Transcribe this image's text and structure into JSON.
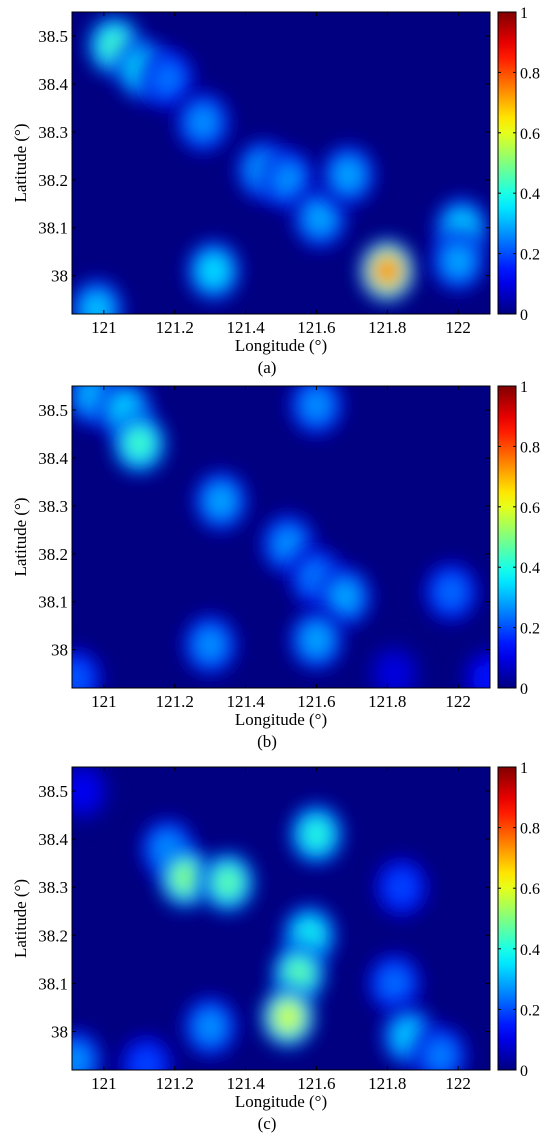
{
  "chart_data": [
    {
      "type": "heatmap",
      "caption": "(a)",
      "xlabel": "Longitude (°)",
      "ylabel": "Latitude (°)",
      "xlim": [
        120.91,
        122.09
      ],
      "ylim": [
        37.92,
        38.55
      ],
      "x_ticks": [
        121,
        121.2,
        121.4,
        121.6,
        121.8,
        122
      ],
      "x_tick_labels": [
        "121",
        "121.2",
        "121.4",
        "121.6",
        "121.8",
        "122"
      ],
      "y_ticks": [
        38,
        38.1,
        38.2,
        38.3,
        38.4,
        38.5
      ],
      "y_tick_labels": [
        "38",
        "38.1",
        "38.2",
        "38.3",
        "38.4",
        "38.5"
      ],
      "colorbar": {
        "range": [
          0,
          1
        ],
        "ticks": [
          0,
          0.2,
          0.4,
          0.6,
          0.8,
          1
        ],
        "tick_labels": [
          "0",
          "0.2",
          "0.4",
          "0.6",
          "0.8",
          "1"
        ],
        "colormap": "jet"
      },
      "blobs": [
        {
          "x": 121.03,
          "y": 38.48,
          "value": 0.45
        },
        {
          "x": 121.11,
          "y": 38.43,
          "value": 0.38
        },
        {
          "x": 121.18,
          "y": 38.41,
          "value": 0.25
        },
        {
          "x": 121.28,
          "y": 38.32,
          "value": 0.28
        },
        {
          "x": 121.45,
          "y": 38.22,
          "value": 0.3
        },
        {
          "x": 121.52,
          "y": 38.2,
          "value": 0.28
        },
        {
          "x": 121.61,
          "y": 38.12,
          "value": 0.3
        },
        {
          "x": 121.69,
          "y": 38.21,
          "value": 0.3
        },
        {
          "x": 121.8,
          "y": 38.01,
          "value": 0.78
        },
        {
          "x": 121.31,
          "y": 38.01,
          "value": 0.36
        },
        {
          "x": 122.01,
          "y": 38.1,
          "value": 0.35
        },
        {
          "x": 122.0,
          "y": 38.03,
          "value": 0.3
        },
        {
          "x": 120.98,
          "y": 37.93,
          "value": 0.33
        }
      ]
    },
    {
      "type": "heatmap",
      "caption": "(b)",
      "xlabel": "Longitude (°)",
      "ylabel": "Latitude (°)",
      "xlim": [
        120.91,
        122.09
      ],
      "ylim": [
        37.92,
        38.55
      ],
      "x_ticks": [
        121,
        121.2,
        121.4,
        121.6,
        121.8,
        122
      ],
      "x_tick_labels": [
        "121",
        "121.2",
        "121.4",
        "121.6",
        "121.8",
        "122"
      ],
      "y_ticks": [
        38,
        38.1,
        38.2,
        38.3,
        38.4,
        38.5
      ],
      "y_tick_labels": [
        "38",
        "38.1",
        "38.2",
        "38.3",
        "38.4",
        "38.5"
      ],
      "colorbar": {
        "range": [
          0,
          1
        ],
        "ticks": [
          0,
          0.2,
          0.4,
          0.6,
          0.8,
          1
        ],
        "tick_labels": [
          "0",
          "0.2",
          "0.4",
          "0.6",
          "0.8",
          "1"
        ],
        "colormap": "jet"
      },
      "blobs": [
        {
          "x": 120.97,
          "y": 38.53,
          "value": 0.32
        },
        {
          "x": 121.06,
          "y": 38.5,
          "value": 0.35
        },
        {
          "x": 121.1,
          "y": 38.43,
          "value": 0.45
        },
        {
          "x": 121.33,
          "y": 38.31,
          "value": 0.3
        },
        {
          "x": 121.52,
          "y": 38.22,
          "value": 0.28
        },
        {
          "x": 121.6,
          "y": 38.15,
          "value": 0.26
        },
        {
          "x": 121.68,
          "y": 38.11,
          "value": 0.3
        },
        {
          "x": 121.6,
          "y": 38.02,
          "value": 0.3
        },
        {
          "x": 121.6,
          "y": 38.51,
          "value": 0.28
        },
        {
          "x": 121.3,
          "y": 38.01,
          "value": 0.28
        },
        {
          "x": 121.98,
          "y": 38.12,
          "value": 0.24
        },
        {
          "x": 121.82,
          "y": 37.95,
          "value": 0.1
        },
        {
          "x": 120.92,
          "y": 37.94,
          "value": 0.22
        },
        {
          "x": 122.09,
          "y": 37.94,
          "value": 0.15
        }
      ]
    },
    {
      "type": "heatmap",
      "caption": "(c)",
      "xlabel": "Longitude (°)",
      "ylabel": "Latitude (°)",
      "xlim": [
        120.91,
        122.09
      ],
      "ylim": [
        37.92,
        38.55
      ],
      "x_ticks": [
        121,
        121.2,
        121.4,
        121.6,
        121.8,
        122
      ],
      "x_tick_labels": [
        "121",
        "121.2",
        "121.4",
        "121.6",
        "121.8",
        "122"
      ],
      "y_ticks": [
        38,
        38.1,
        38.2,
        38.3,
        38.4,
        38.5
      ],
      "y_tick_labels": [
        "38",
        "38.1",
        "38.2",
        "38.3",
        "38.4",
        "38.5"
      ],
      "colorbar": {
        "range": [
          0,
          1
        ],
        "ticks": [
          0,
          0.2,
          0.4,
          0.6,
          0.8,
          1
        ],
        "tick_labels": [
          "0",
          "0.2",
          "0.4",
          "0.6",
          "0.8",
          "1"
        ],
        "colormap": "jet"
      },
      "blobs": [
        {
          "x": 121.18,
          "y": 38.38,
          "value": 0.28
        },
        {
          "x": 121.23,
          "y": 38.32,
          "value": 0.52
        },
        {
          "x": 121.35,
          "y": 38.31,
          "value": 0.48
        },
        {
          "x": 121.6,
          "y": 38.41,
          "value": 0.42
        },
        {
          "x": 121.58,
          "y": 38.2,
          "value": 0.4
        },
        {
          "x": 121.55,
          "y": 38.12,
          "value": 0.48
        },
        {
          "x": 121.52,
          "y": 38.03,
          "value": 0.6
        },
        {
          "x": 121.3,
          "y": 38.01,
          "value": 0.28
        },
        {
          "x": 121.84,
          "y": 38.3,
          "value": 0.2
        },
        {
          "x": 121.82,
          "y": 38.1,
          "value": 0.24
        },
        {
          "x": 121.86,
          "y": 37.99,
          "value": 0.34
        },
        {
          "x": 121.95,
          "y": 37.95,
          "value": 0.26
        },
        {
          "x": 120.92,
          "y": 37.94,
          "value": 0.28
        },
        {
          "x": 121.12,
          "y": 37.93,
          "value": 0.2
        },
        {
          "x": 120.94,
          "y": 38.5,
          "value": 0.12
        }
      ]
    }
  ]
}
